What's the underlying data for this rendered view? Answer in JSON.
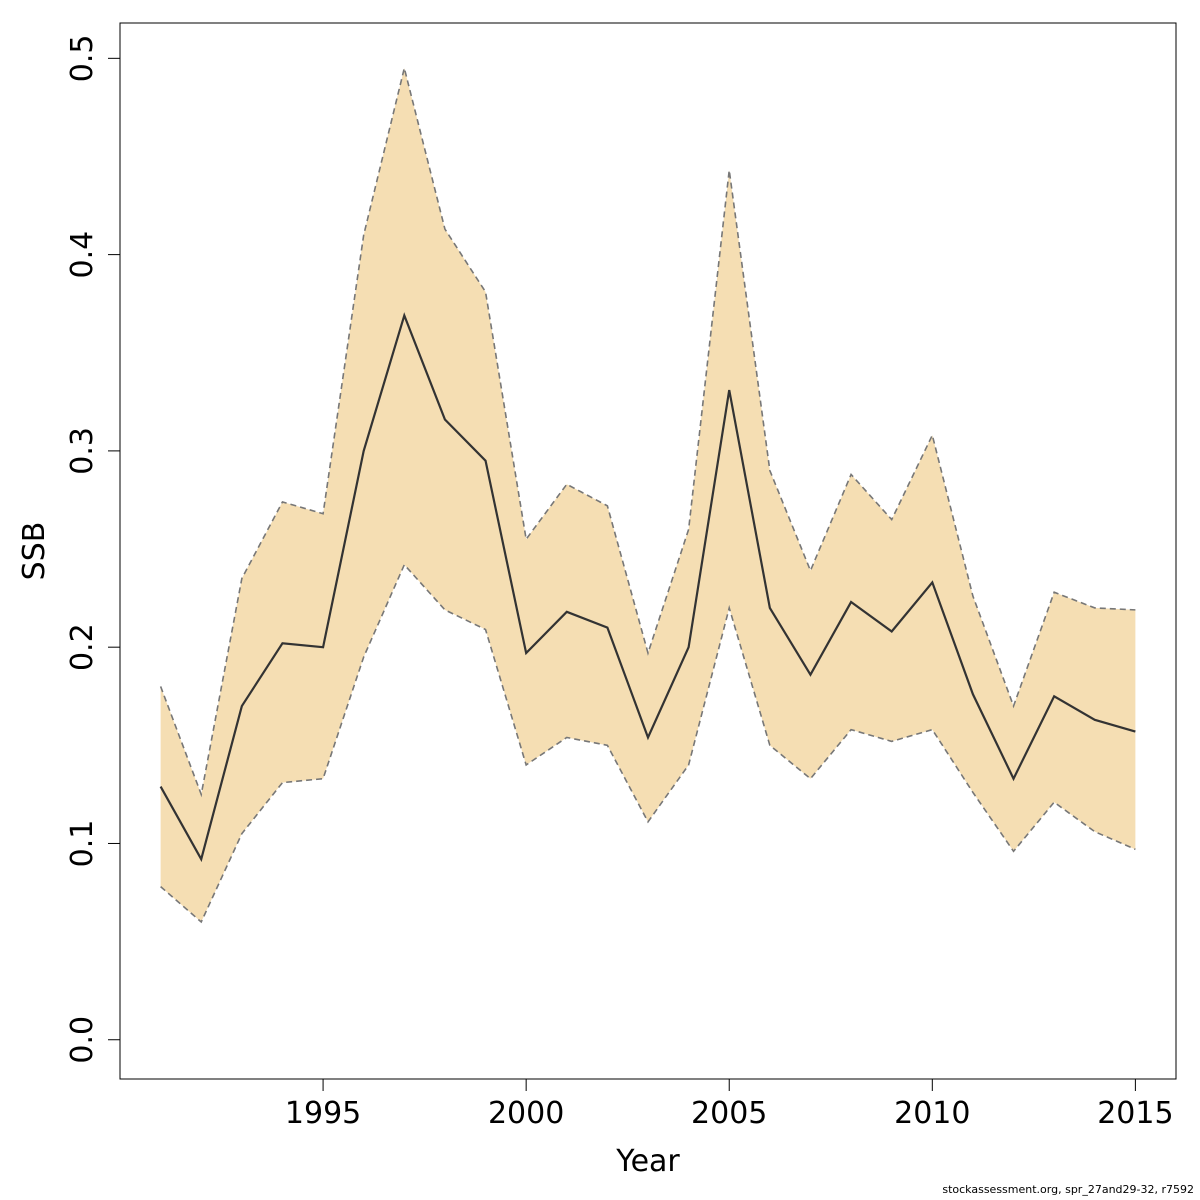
{
  "chart_data": {
    "type": "line",
    "title": "",
    "xlabel": "Year",
    "ylabel": "SSB",
    "xlim": [
      1990.0,
      2016.0
    ],
    "ylim": [
      -0.02,
      0.518
    ],
    "x_ticks": [
      1995,
      2000,
      2005,
      2010,
      2015
    ],
    "y_ticks": [
      0.0,
      0.1,
      0.2,
      0.3,
      0.4,
      0.5
    ],
    "y_tick_labels": [
      "0.0",
      "0.1",
      "0.2",
      "0.3",
      "0.4",
      "0.5"
    ],
    "fill_color": "#F5DEB3",
    "line_color": "#333333",
    "bound_color": "#777777",
    "x": [
      1991,
      1992,
      1993,
      1994,
      1995,
      1996,
      1997,
      1998,
      1999,
      2000,
      2001,
      2002,
      2003,
      2004,
      2005,
      2006,
      2007,
      2008,
      2009,
      2010,
      2011,
      2012,
      2013,
      2014,
      2015
    ],
    "series": [
      {
        "values": [
          0.129,
          0.092,
          0.17,
          0.202,
          0.2,
          0.3,
          0.369,
          0.316,
          0.295,
          0.197,
          0.218,
          0.21,
          0.154,
          0.2,
          0.331,
          0.22,
          0.186,
          0.223,
          0.208,
          0.233,
          0.176,
          0.133,
          0.175,
          0.163,
          0.157
        ]
      },
      {
        "values": [
          0.18,
          0.125,
          0.235,
          0.274,
          0.268,
          0.41,
          0.495,
          0.413,
          0.381,
          0.255,
          0.283,
          0.272,
          0.197,
          0.26,
          0.443,
          0.29,
          0.239,
          0.288,
          0.265,
          0.308,
          0.226,
          0.17,
          0.228,
          0.22,
          0.219
        ]
      },
      {
        "values": [
          0.078,
          0.06,
          0.105,
          0.131,
          0.133,
          0.195,
          0.242,
          0.219,
          0.209,
          0.14,
          0.154,
          0.15,
          0.111,
          0.14,
          0.22,
          0.15,
          0.133,
          0.158,
          0.152,
          0.158,
          0.126,
          0.096,
          0.121,
          0.106,
          0.097
        ]
      }
    ]
  },
  "footer": "stockassessment.org, spr_27and29-32, r7592"
}
